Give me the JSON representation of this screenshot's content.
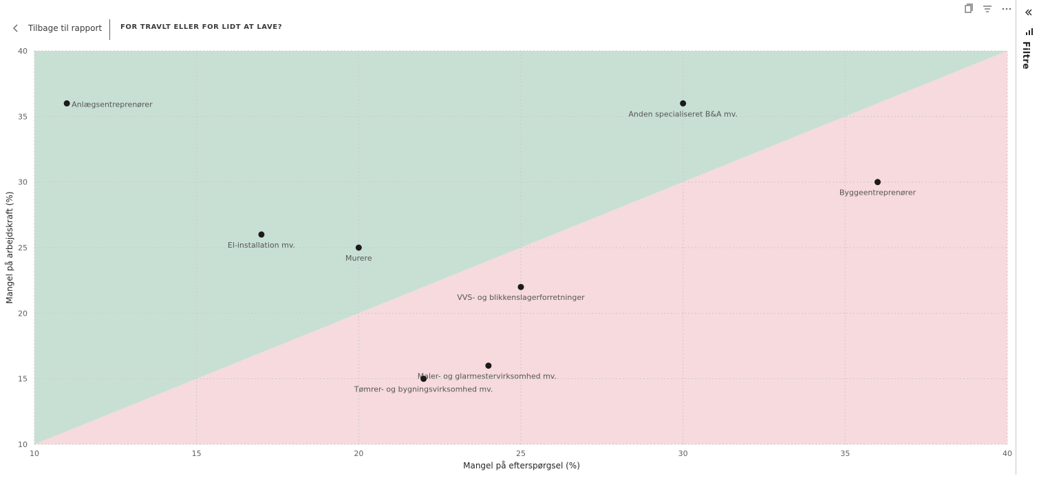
{
  "header": {
    "back_label": "Tilbage til rapport",
    "title": "FOR TRAVLT ELLER FOR LIDT AT LAVE?"
  },
  "toolbar_icons": [
    "copy-icon",
    "filter-icon",
    "more-options-icon"
  ],
  "filter_pane": {
    "label": "Filtre",
    "icons": [
      "collapse-icon",
      "filter-bars-icon"
    ]
  },
  "colors": {
    "above_region": "#c8e0d4",
    "below_region": "#f6dadd",
    "point": "#1b1b1b"
  },
  "chart_data": {
    "type": "scatter",
    "xlabel": "Mangel på efterspørgsel (%)",
    "ylabel": "Mangel på arbejdskraft (%)",
    "xlim": [
      10,
      40
    ],
    "ylim": [
      10,
      40
    ],
    "xticks": [
      10,
      15,
      20,
      25,
      30,
      35,
      40
    ],
    "yticks": [
      10,
      15,
      20,
      25,
      30,
      35,
      40
    ],
    "grid": true,
    "background_regions": "diagonal y = x: green above, red below",
    "points": [
      {
        "label": "Anlægsentreprenører",
        "x": 11,
        "y": 36
      },
      {
        "label": "Anden specialiseret B&A mv.",
        "x": 30,
        "y": 36
      },
      {
        "label": "Byggeentreprenører",
        "x": 36,
        "y": 30
      },
      {
        "label": "El-installation mv.",
        "x": 17,
        "y": 26
      },
      {
        "label": "Murere",
        "x": 20,
        "y": 25
      },
      {
        "label": "VVS- og blikkenslagerforretninger",
        "x": 25,
        "y": 22
      },
      {
        "label": "Maler- og glarmestervirksomhed mv.",
        "x": 24,
        "y": 16
      },
      {
        "label": "Tømrer- og bygningsvirksomhed mv.",
        "x": 22,
        "y": 15
      }
    ]
  }
}
